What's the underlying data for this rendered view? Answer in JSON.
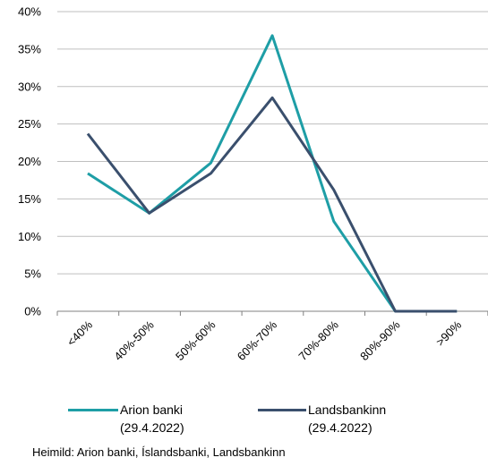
{
  "chart_data": {
    "type": "line",
    "categories": [
      "<40%",
      "40%-50%",
      "50%-60%",
      "60%-70%",
      "70%-80%",
      "80%-90%",
      ">90%"
    ],
    "y_ticks": [
      "0%",
      "5%",
      "10%",
      "15%",
      "20%",
      "25%",
      "30%",
      "35%",
      "40%"
    ],
    "ylim": [
      0,
      40
    ],
    "grid": "horizontal",
    "legend_position": "bottom",
    "series": [
      {
        "name": "Arion banki",
        "name_line2": "(29.4.2022)",
        "color": "#1e9ea6",
        "values": [
          18.4,
          13.1,
          19.8,
          36.8,
          12.0,
          0.0,
          0.0
        ]
      },
      {
        "name": "Landsbankinn",
        "name_line2": "(29.4.2022)",
        "color": "#3a4f6d",
        "values": [
          23.7,
          13.1,
          18.4,
          28.5,
          16.2,
          0.0,
          0.0
        ]
      }
    ]
  },
  "source": "Heimild:  Arion banki, Íslandsbanki, Landsbankinn"
}
